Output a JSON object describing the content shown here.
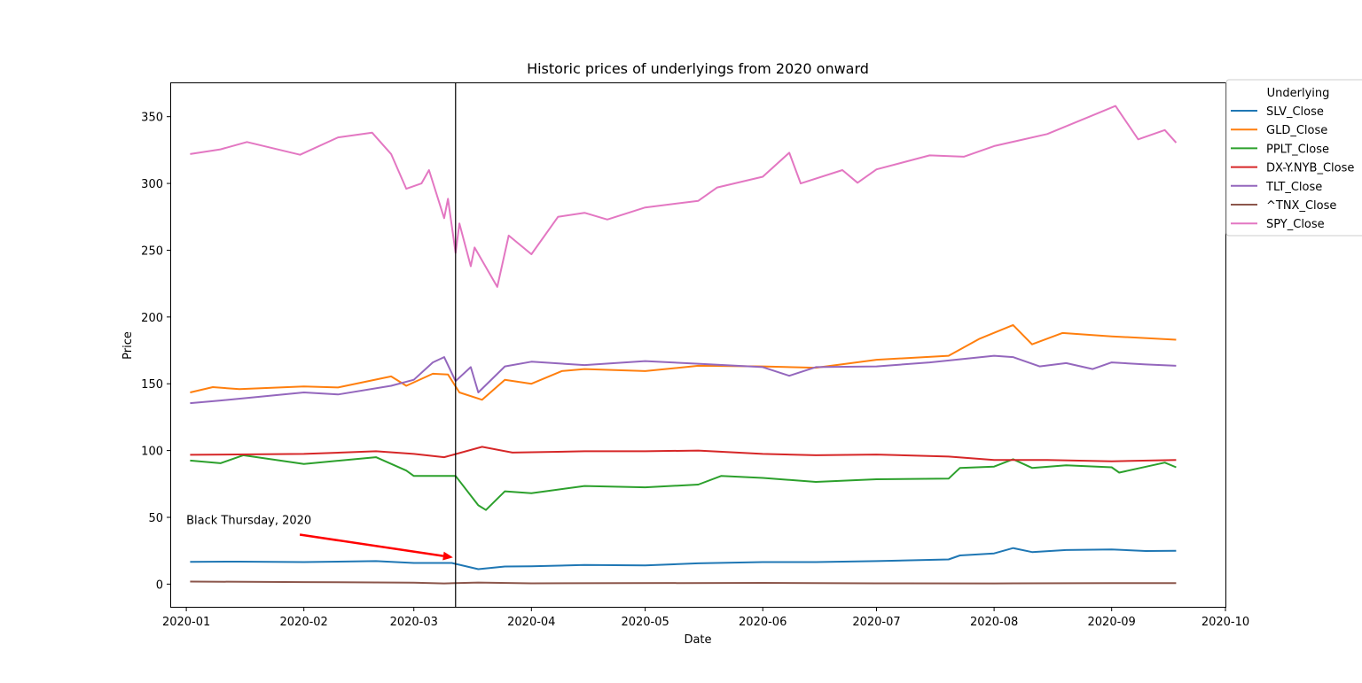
{
  "chart_data": {
    "type": "line",
    "title": "Historic prices of underlyings from 2020 onward",
    "xlabel": "Date",
    "ylabel": "Price",
    "xlim": [
      "2019-12-28",
      "2020-10-01"
    ],
    "ylim": [
      -17,
      375
    ],
    "x_ticks": [
      "2020-01",
      "2020-02",
      "2020-03",
      "2020-04",
      "2020-05",
      "2020-06",
      "2020-07",
      "2020-08",
      "2020-09",
      "2020-10"
    ],
    "y_ticks": [
      0,
      50,
      100,
      150,
      200,
      250,
      300,
      350
    ],
    "grid": false,
    "legend": {
      "title": "Underlying",
      "placement": "upper-right-outside"
    },
    "vline": {
      "x": "2020-03-12"
    },
    "annotation": {
      "text": "Black Thursday, 2020",
      "text_at": [
        "2020-01-01",
        45
      ],
      "arrow_to": [
        "2020-03-12",
        20
      ],
      "color": "#ff0000"
    },
    "series": [
      {
        "name": "SLV_Close",
        "color": "#1f77b4",
        "points": [
          [
            "2020-01-02",
            16.7
          ],
          [
            "2020-01-15",
            16.8
          ],
          [
            "2020-02-01",
            16.5
          ],
          [
            "2020-02-20",
            17.2
          ],
          [
            "2020-03-01",
            15.8
          ],
          [
            "2020-03-11",
            15.8
          ],
          [
            "2020-03-18",
            11.2
          ],
          [
            "2020-03-25",
            13.2
          ],
          [
            "2020-04-01",
            13.3
          ],
          [
            "2020-04-15",
            14.3
          ],
          [
            "2020-05-01",
            14.0
          ],
          [
            "2020-05-15",
            15.6
          ],
          [
            "2020-06-01",
            16.5
          ],
          [
            "2020-06-15",
            16.5
          ],
          [
            "2020-07-01",
            17.2
          ],
          [
            "2020-07-20",
            18.5
          ],
          [
            "2020-07-23",
            21.5
          ],
          [
            "2020-08-01",
            23.0
          ],
          [
            "2020-08-06",
            27.0
          ],
          [
            "2020-08-11",
            24.0
          ],
          [
            "2020-08-20",
            25.5
          ],
          [
            "2020-09-01",
            26.0
          ],
          [
            "2020-09-10",
            24.8
          ],
          [
            "2020-09-18",
            25.0
          ]
        ]
      },
      {
        "name": "GLD_Close",
        "color": "#ff7f0e",
        "points": [
          [
            "2020-01-02",
            143.5
          ],
          [
            "2020-01-08",
            147.5
          ],
          [
            "2020-01-15",
            146.0
          ],
          [
            "2020-02-01",
            148.0
          ],
          [
            "2020-02-10",
            147.2
          ],
          [
            "2020-02-24",
            155.5
          ],
          [
            "2020-02-28",
            148.5
          ],
          [
            "2020-03-06",
            157.5
          ],
          [
            "2020-03-10",
            157.0
          ],
          [
            "2020-03-13",
            143.5
          ],
          [
            "2020-03-19",
            138.0
          ],
          [
            "2020-03-25",
            153.0
          ],
          [
            "2020-04-01",
            150.0
          ],
          [
            "2020-04-09",
            159.5
          ],
          [
            "2020-04-15",
            161.0
          ],
          [
            "2020-05-01",
            159.5
          ],
          [
            "2020-05-15",
            163.5
          ],
          [
            "2020-06-01",
            163.0
          ],
          [
            "2020-06-15",
            162.0
          ],
          [
            "2020-07-01",
            168.0
          ],
          [
            "2020-07-20",
            171.0
          ],
          [
            "2020-07-28",
            183.5
          ],
          [
            "2020-08-06",
            194.0
          ],
          [
            "2020-08-11",
            179.5
          ],
          [
            "2020-08-19",
            188.0
          ],
          [
            "2020-09-01",
            185.5
          ],
          [
            "2020-09-18",
            183.0
          ]
        ]
      },
      {
        "name": "PPLT_Close",
        "color": "#2ca02c",
        "points": [
          [
            "2020-01-02",
            92.5
          ],
          [
            "2020-01-10",
            90.5
          ],
          [
            "2020-01-16",
            96.5
          ],
          [
            "2020-02-01",
            90.0
          ],
          [
            "2020-02-20",
            95.0
          ],
          [
            "2020-02-28",
            85.0
          ],
          [
            "2020-03-01",
            81.0
          ],
          [
            "2020-03-12",
            81.0
          ],
          [
            "2020-03-18",
            59.0
          ],
          [
            "2020-03-20",
            55.5
          ],
          [
            "2020-03-25",
            69.5
          ],
          [
            "2020-04-01",
            68.0
          ],
          [
            "2020-04-15",
            73.5
          ],
          [
            "2020-05-01",
            72.5
          ],
          [
            "2020-05-15",
            74.5
          ],
          [
            "2020-05-21",
            81.0
          ],
          [
            "2020-06-01",
            79.5
          ],
          [
            "2020-06-15",
            76.5
          ],
          [
            "2020-07-01",
            78.5
          ],
          [
            "2020-07-20",
            79.0
          ],
          [
            "2020-07-23",
            87.0
          ],
          [
            "2020-08-01",
            88.0
          ],
          [
            "2020-08-06",
            93.5
          ],
          [
            "2020-08-11",
            87.0
          ],
          [
            "2020-08-20",
            89.0
          ],
          [
            "2020-09-01",
            87.5
          ],
          [
            "2020-09-03",
            83.5
          ],
          [
            "2020-09-15",
            91.0
          ],
          [
            "2020-09-18",
            87.5
          ]
        ]
      },
      {
        "name": "DX-Y.NYB_Close",
        "color": "#d62728",
        "points": [
          [
            "2020-01-02",
            96.8
          ],
          [
            "2020-02-01",
            97.5
          ],
          [
            "2020-02-20",
            99.5
          ],
          [
            "2020-03-01",
            97.5
          ],
          [
            "2020-03-09",
            95.0
          ],
          [
            "2020-03-19",
            102.8
          ],
          [
            "2020-03-27",
            98.5
          ],
          [
            "2020-04-15",
            99.5
          ],
          [
            "2020-05-01",
            99.5
          ],
          [
            "2020-05-15",
            100.0
          ],
          [
            "2020-06-01",
            97.5
          ],
          [
            "2020-06-15",
            96.5
          ],
          [
            "2020-07-01",
            97.0
          ],
          [
            "2020-07-20",
            95.5
          ],
          [
            "2020-08-01",
            93.0
          ],
          [
            "2020-08-15",
            93.0
          ],
          [
            "2020-09-01",
            92.0
          ],
          [
            "2020-09-18",
            93.0
          ]
        ]
      },
      {
        "name": "TLT_Close",
        "color": "#9467bd",
        "points": [
          [
            "2020-01-02",
            135.5
          ],
          [
            "2020-01-10",
            137.5
          ],
          [
            "2020-02-01",
            143.5
          ],
          [
            "2020-02-10",
            142.0
          ],
          [
            "2020-02-24",
            148.5
          ],
          [
            "2020-03-01",
            153.0
          ],
          [
            "2020-03-06",
            166.0
          ],
          [
            "2020-03-09",
            170.0
          ],
          [
            "2020-03-12",
            152.0
          ],
          [
            "2020-03-16",
            162.5
          ],
          [
            "2020-03-18",
            143.5
          ],
          [
            "2020-03-25",
            163.0
          ],
          [
            "2020-04-01",
            166.5
          ],
          [
            "2020-04-15",
            164.0
          ],
          [
            "2020-05-01",
            167.0
          ],
          [
            "2020-05-15",
            165.0
          ],
          [
            "2020-06-01",
            162.5
          ],
          [
            "2020-06-08",
            156.0
          ],
          [
            "2020-06-15",
            162.5
          ],
          [
            "2020-07-01",
            163.0
          ],
          [
            "2020-07-15",
            166.0
          ],
          [
            "2020-08-01",
            171.0
          ],
          [
            "2020-08-06",
            170.0
          ],
          [
            "2020-08-13",
            163.0
          ],
          [
            "2020-08-20",
            165.5
          ],
          [
            "2020-08-27",
            161.0
          ],
          [
            "2020-09-01",
            166.0
          ],
          [
            "2020-09-10",
            164.5
          ],
          [
            "2020-09-18",
            163.5
          ]
        ]
      },
      {
        "name": "^TNX_Close",
        "color": "#8c564b",
        "points": [
          [
            "2020-01-02",
            1.9
          ],
          [
            "2020-02-01",
            1.5
          ],
          [
            "2020-03-01",
            1.1
          ],
          [
            "2020-03-09",
            0.5
          ],
          [
            "2020-03-18",
            1.2
          ],
          [
            "2020-04-01",
            0.6
          ],
          [
            "2020-06-01",
            0.9
          ],
          [
            "2020-07-01",
            0.6
          ],
          [
            "2020-08-01",
            0.5
          ],
          [
            "2020-09-01",
            0.7
          ],
          [
            "2020-09-18",
            0.7
          ]
        ]
      },
      {
        "name": "SPY_Close",
        "color": "#e377c2",
        "points": [
          [
            "2020-01-02",
            322.0
          ],
          [
            "2020-01-10",
            325.5
          ],
          [
            "2020-01-17",
            331.0
          ],
          [
            "2020-01-31",
            321.5
          ],
          [
            "2020-02-10",
            334.5
          ],
          [
            "2020-02-19",
            338.0
          ],
          [
            "2020-02-24",
            322.0
          ],
          [
            "2020-02-28",
            296.0
          ],
          [
            "2020-03-03",
            300.0
          ],
          [
            "2020-03-05",
            310.0
          ],
          [
            "2020-03-09",
            274.0
          ],
          [
            "2020-03-10",
            288.5
          ],
          [
            "2020-03-12",
            248.0
          ],
          [
            "2020-03-13",
            270.0
          ],
          [
            "2020-03-16",
            238.0
          ],
          [
            "2020-03-17",
            252.0
          ],
          [
            "2020-03-23",
            222.5
          ],
          [
            "2020-03-26",
            261.0
          ],
          [
            "2020-04-01",
            247.0
          ],
          [
            "2020-04-08",
            275.0
          ],
          [
            "2020-04-15",
            278.0
          ],
          [
            "2020-04-21",
            273.0
          ],
          [
            "2020-05-01",
            282.0
          ],
          [
            "2020-05-15",
            287.0
          ],
          [
            "2020-05-20",
            297.0
          ],
          [
            "2020-06-01",
            305.0
          ],
          [
            "2020-06-08",
            323.0
          ],
          [
            "2020-06-11",
            300.0
          ],
          [
            "2020-06-22",
            310.0
          ],
          [
            "2020-06-26",
            300.5
          ],
          [
            "2020-07-01",
            310.5
          ],
          [
            "2020-07-15",
            321.0
          ],
          [
            "2020-07-24",
            320.0
          ],
          [
            "2020-08-01",
            328.0
          ],
          [
            "2020-08-15",
            337.0
          ],
          [
            "2020-09-02",
            358.0
          ],
          [
            "2020-09-08",
            333.0
          ],
          [
            "2020-09-15",
            340.0
          ],
          [
            "2020-09-18",
            330.5
          ]
        ]
      }
    ]
  }
}
